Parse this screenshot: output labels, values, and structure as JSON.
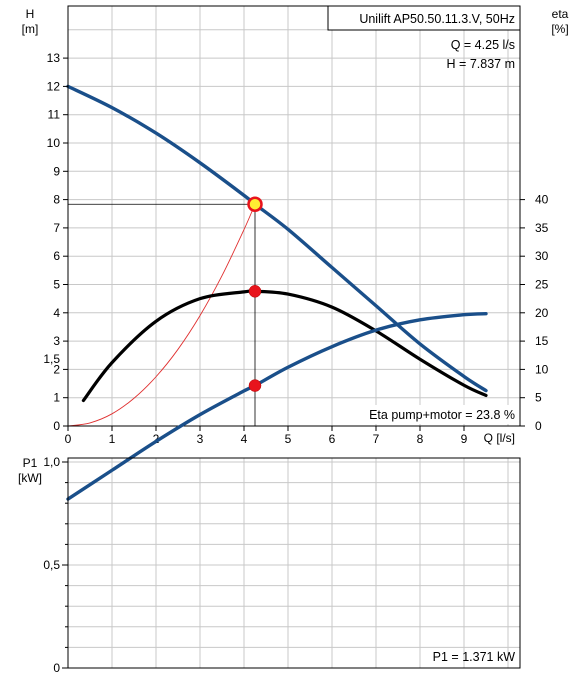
{
  "chart_data": [
    {
      "type": "line",
      "title": "Unilift AP50.50.11.3.V, 50Hz",
      "xlabel": "Q [l/s]",
      "ylabel_left": [
        "H",
        "[m]"
      ],
      "ylabel_right": [
        "eta",
        "[%]"
      ],
      "xlim": [
        0,
        10
      ],
      "ylim_left": [
        0,
        14
      ],
      "ylim_right": [
        0,
        70
      ],
      "grid": true,
      "x_ticks": [
        0,
        1,
        2,
        3,
        4,
        5,
        6,
        7,
        8,
        9
      ],
      "y_left_ticks": [
        0,
        1,
        2,
        3,
        4,
        5,
        6,
        7,
        8,
        9,
        10,
        11,
        12,
        13
      ],
      "y_right_ticks": [
        0,
        5,
        10,
        15,
        20,
        25,
        30,
        35,
        40
      ],
      "series": [
        {
          "axis": "left",
          "color": "#1a4f8a",
          "x": [
            0,
            1,
            2,
            3,
            4,
            4.25,
            5,
            6,
            7,
            8,
            9,
            9.5
          ],
          "y": [
            12.0,
            11.25,
            10.35,
            9.3,
            8.15,
            7.837,
            6.95,
            5.6,
            4.25,
            2.9,
            1.75,
            1.25
          ]
        },
        {
          "axis": "right",
          "color": "#000000",
          "x": [
            0.35,
            1,
            2,
            3,
            4,
            4.25,
            5,
            6,
            7,
            8,
            9,
            9.5
          ],
          "y": [
            4.5,
            11.2,
            18.5,
            22.5,
            23.7,
            23.8,
            23.3,
            21.0,
            16.8,
            11.8,
            7.2,
            5.4
          ]
        },
        {
          "axis": "left",
          "color": "#e03030",
          "x": [
            0,
            0.5,
            1,
            1.5,
            2,
            2.5,
            3,
            3.5,
            4,
            4.25
          ],
          "y": [
            0,
            0.11,
            0.43,
            0.98,
            1.74,
            2.71,
            3.9,
            5.31,
            6.94,
            7.837
          ]
        }
      ],
      "operating_point": {
        "q": 4.25,
        "h": 7.837,
        "eta": 23.8
      },
      "info_q": "Q = 4.25 l/s",
      "info_h": "H = 7.837 m",
      "info_eta": "Eta pump+motor = 23.8 %"
    },
    {
      "type": "line",
      "ylabel_left": [
        "P1",
        "[kW]"
      ],
      "xlim": [
        0,
        10
      ],
      "ylim": [
        0,
        2
      ],
      "grid": true,
      "y_ticks": [
        {
          "v": 0,
          "t": "0"
        },
        {
          "v": 0.5,
          "t": "0,5"
        },
        {
          "v": 1.0,
          "t": "1,0"
        },
        {
          "v": 1.5,
          "t": "1,5"
        }
      ],
      "series": [
        {
          "color": "#1a4f8a",
          "x": [
            0,
            1,
            2,
            3,
            4,
            4.25,
            5,
            6,
            7,
            8,
            9,
            9.5
          ],
          "y": [
            0.82,
            0.96,
            1.1,
            1.23,
            1.345,
            1.371,
            1.46,
            1.56,
            1.64,
            1.69,
            1.715,
            1.72
          ]
        }
      ],
      "operating_point": {
        "q": 4.25,
        "p1": 1.371
      },
      "info_p1": "P1 = 1.371 kW"
    }
  ]
}
